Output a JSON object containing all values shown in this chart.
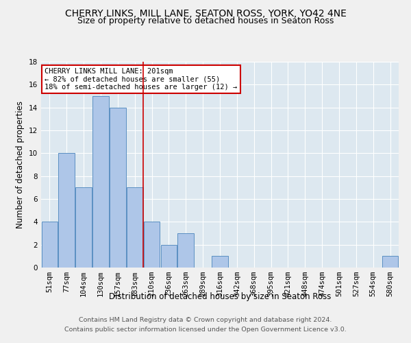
{
  "title": "CHERRY LINKS, MILL LANE, SEATON ROSS, YORK, YO42 4NE",
  "subtitle": "Size of property relative to detached houses in Seaton Ross",
  "xlabel": "Distribution of detached houses by size in Seaton Ross",
  "ylabel": "Number of detached properties",
  "footer1": "Contains HM Land Registry data © Crown copyright and database right 2024.",
  "footer2": "Contains public sector information licensed under the Open Government Licence v3.0.",
  "bin_labels": [
    "51sqm",
    "77sqm",
    "104sqm",
    "130sqm",
    "157sqm",
    "183sqm",
    "210sqm",
    "236sqm",
    "263sqm",
    "289sqm",
    "316sqm",
    "342sqm",
    "368sqm",
    "395sqm",
    "421sqm",
    "448sqm",
    "474sqm",
    "501sqm",
    "527sqm",
    "554sqm",
    "580sqm"
  ],
  "bar_values": [
    4,
    10,
    7,
    15,
    14,
    7,
    4,
    2,
    3,
    0,
    1,
    0,
    0,
    0,
    0,
    0,
    0,
    0,
    0,
    0,
    1
  ],
  "bar_color": "#aec6e8",
  "bar_edgecolor": "#5a8fc2",
  "vline_color": "#cc0000",
  "annotation_text": "CHERRY LINKS MILL LANE: 201sqm\n← 82% of detached houses are smaller (55)\n18% of semi-detached houses are larger (12) →",
  "annotation_box_color": "#ffffff",
  "annotation_box_edgecolor": "#cc0000",
  "ylim": [
    0,
    18
  ],
  "yticks": [
    0,
    2,
    4,
    6,
    8,
    10,
    12,
    14,
    16,
    18
  ],
  "bg_color": "#dde8f0",
  "grid_color": "#ffffff",
  "title_fontsize": 10,
  "subtitle_fontsize": 9,
  "axis_label_fontsize": 8.5,
  "tick_fontsize": 7.5,
  "footer_fontsize": 6.8,
  "ann_fontsize": 7.5
}
